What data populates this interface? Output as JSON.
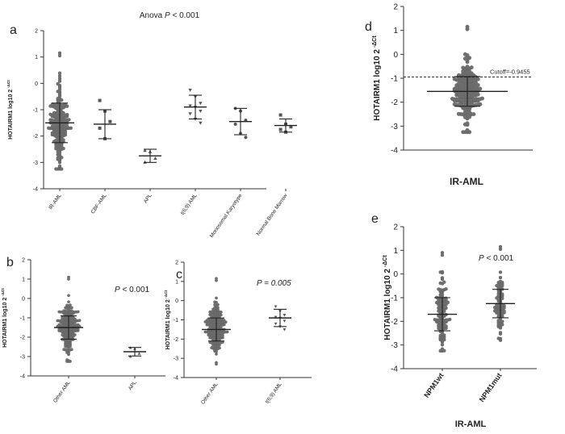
{
  "colors": {
    "text": "#222222",
    "axis": "#333333",
    "dot": "#707070",
    "mark": "#555555",
    "bar": "#222222"
  },
  "chart_data": [
    {
      "id": "a",
      "type": "scatter",
      "panel_label": "a",
      "title": "Anova P < 0.001",
      "title_prefix": "Anova ",
      "title_p": "P",
      "title_suffix": " < 0.001",
      "ylabel": "HOTAIRM1 log10 2",
      "ylabel_sup": "-ΔCt",
      "ylim": [
        -4,
        2
      ],
      "yticks": [
        -4,
        -3,
        -2,
        -1,
        0,
        1,
        2
      ],
      "categories": [
        "IR-AML",
        "CBF-AML",
        "APL",
        "t(6;9) AML",
        "Monosomal Karyotype",
        "Normal Bone Marrow"
      ],
      "groups": [
        {
          "name": "IR-AML",
          "marker": "circle",
          "n": 220,
          "mean": -1.5,
          "sd": 0.75,
          "min": -3.25,
          "max": 1.15
        },
        {
          "name": "CBF-AML",
          "marker": "square",
          "points": [
            -0.65,
            -1.05,
            -1.45,
            -1.7,
            -2.1
          ],
          "mean": -1.55,
          "sd": 0.55
        },
        {
          "name": "APL",
          "marker": "triangle-up",
          "points": [
            -2.55,
            -2.6,
            -2.85,
            -3.0
          ],
          "mean": -2.75,
          "sd": 0.25
        },
        {
          "name": "t(6;9) AML",
          "marker": "triangle-down",
          "points": [
            -0.25,
            -0.5,
            -0.75,
            -0.85,
            -0.9,
            -1.05,
            -1.15,
            -1.35,
            -1.5
          ],
          "mean": -0.9,
          "sd": 0.45
        },
        {
          "name": "Monosomal Karyotype",
          "marker": "hexagon",
          "points": [
            -0.95,
            -1.05,
            -1.4,
            -1.55,
            -1.9,
            -2.05
          ],
          "mean": -1.45,
          "sd": 0.5
        },
        {
          "name": "Normal Bone Marrow",
          "marker": "square",
          "points": [
            -1.2,
            -1.55,
            -1.65,
            -1.75,
            -1.85
          ],
          "mean": -1.6,
          "sd": 0.25
        }
      ]
    },
    {
      "id": "b",
      "type": "scatter",
      "panel_label": "b",
      "annotation_p": "P",
      "annotation_rest": " < 0.001",
      "ylabel": "HOTAIRM1 log10 2",
      "ylabel_sup": "-ΔCt",
      "ylim": [
        -4,
        2
      ],
      "yticks": [
        -4,
        -3,
        -2,
        -1,
        0,
        1,
        2
      ],
      "categories": [
        "Other AML",
        "APL"
      ],
      "groups": [
        {
          "name": "Other AML",
          "marker": "circle",
          "n": 240,
          "mean": -1.5,
          "sd": 0.6,
          "min": -3.25,
          "max": 1.1
        },
        {
          "name": "APL",
          "marker": "triangle-up",
          "points": [
            -2.55,
            -2.6,
            -2.85,
            -3.0
          ],
          "mean": -2.75,
          "sd": 0.22
        }
      ]
    },
    {
      "id": "c",
      "type": "scatter",
      "panel_label": "c",
      "annotation_p": "P = 0.005",
      "annotation_rest": "",
      "ylabel": "HOTAIRM1 log10 2",
      "ylabel_sup": "-ΔCt",
      "ylim": [
        -4,
        2
      ],
      "yticks": [
        -4,
        -3,
        -2,
        -1,
        0,
        1,
        2
      ],
      "categories": [
        "Other AML",
        "t(6;9) AML"
      ],
      "groups": [
        {
          "name": "Other AML",
          "marker": "circle",
          "n": 240,
          "mean": -1.5,
          "sd": 0.6,
          "min": -3.3,
          "max": 1.15
        },
        {
          "name": "t(6;9) AML",
          "marker": "triangle-down",
          "points": [
            -0.3,
            -0.55,
            -0.75,
            -0.85,
            -0.9,
            -1.05,
            -1.2,
            -1.35,
            -1.5
          ],
          "mean": -0.9,
          "sd": 0.45
        }
      ]
    },
    {
      "id": "d",
      "type": "scatter",
      "panel_label": "d",
      "ylabel": "HOTAIRM1 log10 2",
      "ylabel_sup": "-ΔCt",
      "xlabel": "IR-AML",
      "cutoff_label": "Cutoff=-0.9455",
      "cutoff_value": -0.9455,
      "ylim": [
        -4,
        2
      ],
      "yticks": [
        -4,
        -3,
        -2,
        -1,
        0,
        1,
        2
      ],
      "categories": [],
      "groups": [
        {
          "name": "IR-AML",
          "marker": "circle",
          "n": 220,
          "mean": -1.55,
          "sd": 0.62,
          "min": -3.25,
          "max": 1.15
        }
      ]
    },
    {
      "id": "e",
      "type": "scatter",
      "panel_label": "e",
      "annotation_p": "P",
      "annotation_rest": " < 0.001",
      "ylabel": "HOTAIRM1 log10 2",
      "ylabel_sup": "-ΔCt",
      "xlabel": "IR-AML",
      "ylim": [
        -4,
        2
      ],
      "yticks": [
        -4,
        -3,
        -2,
        -1,
        0,
        1,
        2
      ],
      "categories": [
        "NPM1wt",
        "NPM1mut"
      ],
      "groups": [
        {
          "name": "NPM1wt",
          "marker": "circle",
          "n": 130,
          "mean": -1.7,
          "sd": 0.7,
          "min": -3.25,
          "max": 0.9
        },
        {
          "name": "NPM1mut",
          "marker": "circle",
          "n": 90,
          "mean": -1.25,
          "sd": 0.6,
          "min": -2.8,
          "max": 1.15
        }
      ]
    }
  ]
}
